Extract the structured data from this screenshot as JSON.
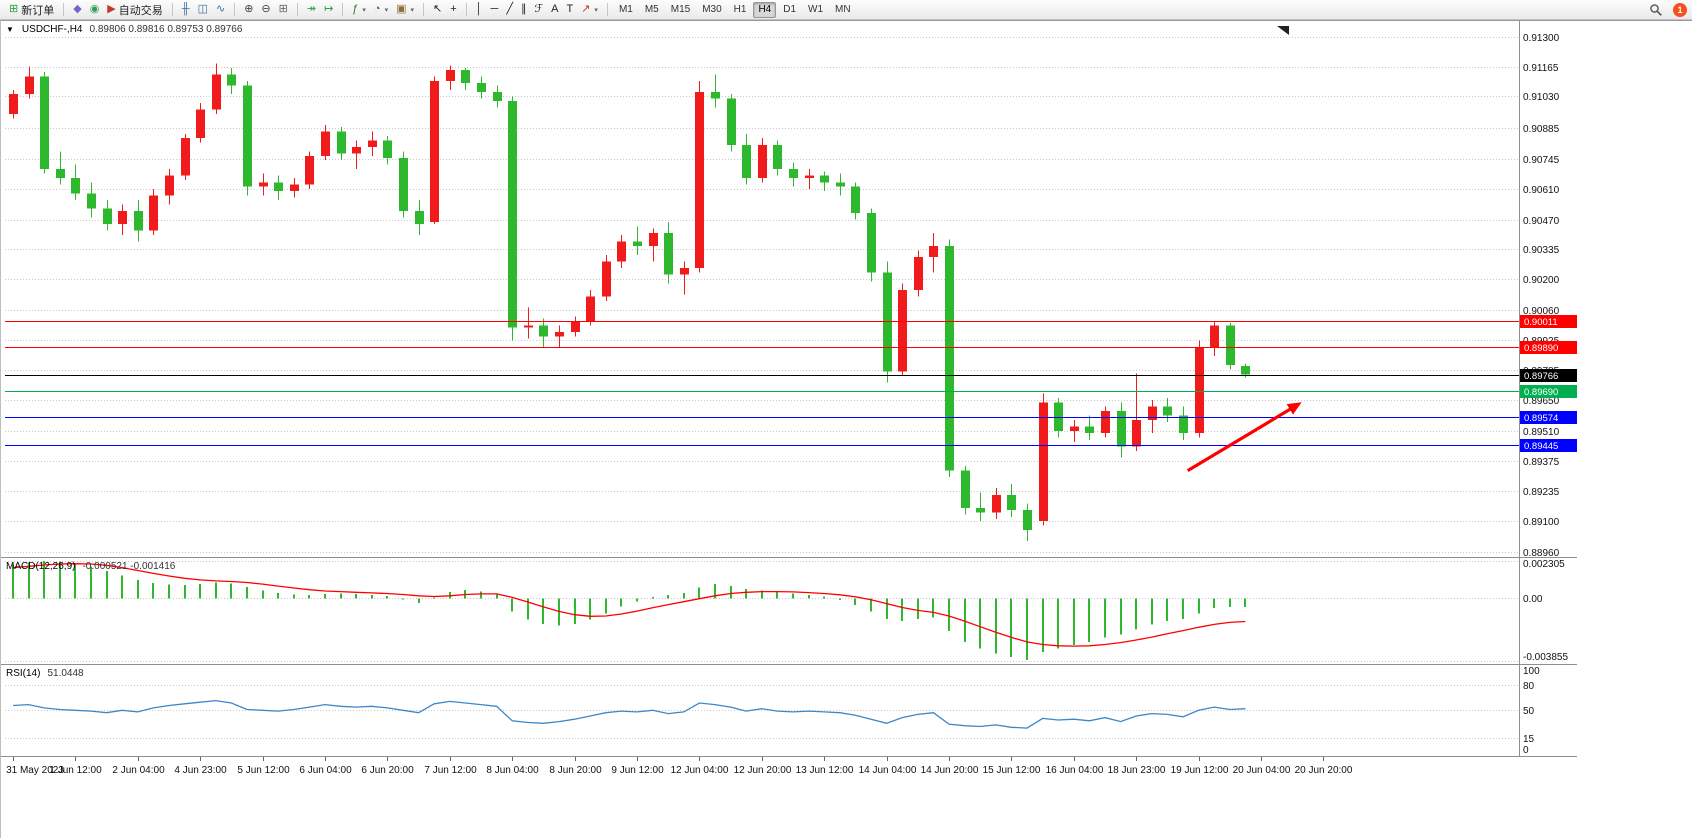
{
  "toolbar": {
    "groups": [
      {
        "name": "orders",
        "items": [
          {
            "name": "new-order-button",
            "glyph": "⊞",
            "glyph_color": "#2e9e44",
            "label": "新订单"
          }
        ]
      },
      {
        "name": "apps",
        "items": [
          {
            "name": "metaeditor-icon-button",
            "glyph": "◆",
            "glyph_color": "#7a63c8"
          },
          {
            "name": "market-watch-icon-button",
            "glyph": "◉",
            "glyph_color": "#2e9e5b"
          },
          {
            "name": "autotrading-button",
            "glyph": "▶",
            "glyph_color": "#c0392b",
            "label": "自动交易"
          }
        ]
      },
      {
        "name": "chart-types",
        "items": [
          {
            "name": "bar-chart-icon-button",
            "glyph": "╫",
            "glyph_color": "#3a6ea5"
          },
          {
            "name": "candlestick-chart-icon-button",
            "glyph": "◫",
            "glyph_color": "#3a6ea5"
          },
          {
            "name": "line-chart-icon-button",
            "glyph": "∿",
            "glyph_color": "#3a6ea5"
          }
        ]
      },
      {
        "name": "zoom",
        "items": [
          {
            "name": "zoom-in-icon-button",
            "glyph": "⊕",
            "glyph_color": "#444444"
          },
          {
            "name": "zoom-out-icon-button",
            "glyph": "⊖",
            "glyph_color": "#444444"
          },
          {
            "name": "tile-windows-icon-button",
            "glyph": "⊞",
            "glyph_color": "#666666"
          }
        ]
      },
      {
        "name": "scroll",
        "items": [
          {
            "name": "auto-scroll-icon-button",
            "glyph": "↠",
            "glyph_color": "#2e9e44"
          },
          {
            "name": "chart-shift-icon-button",
            "glyph": "↦",
            "glyph_color": "#2e9e44"
          }
        ]
      },
      {
        "name": "objects",
        "items": [
          {
            "name": "indicators-icon-button",
            "glyph": "ƒ",
            "glyph_color": "#2e7d32",
            "caret": true
          },
          {
            "name": "periods-icon-button",
            "glyph": "◔",
            "glyph_color": "#555555",
            "caret": true
          },
          {
            "name": "templates-icon-button",
            "glyph": "▣",
            "glyph_color": "#8a6d3b",
            "caret": true
          }
        ]
      },
      {
        "name": "cursor",
        "items": [
          {
            "name": "cursor-icon-button",
            "glyph": "↖",
            "glyph_color": "#222222"
          },
          {
            "name": "crosshair-icon-button",
            "glyph": "+",
            "glyph_color": "#222222"
          }
        ]
      },
      {
        "name": "drawing",
        "items": [
          {
            "name": "vertical-line-icon-button",
            "glyph": "│",
            "glyph_color": "#222222"
          },
          {
            "name": "horizontal-line-icon-button",
            "glyph": "─",
            "glyph_color": "#222222"
          },
          {
            "name": "trendline-icon-button",
            "glyph": "╱",
            "glyph_color": "#222222"
          },
          {
            "name": "channel-icon-button",
            "glyph": "∥",
            "glyph_color": "#222222"
          },
          {
            "name": "fibonacci-icon-button",
            "glyph": "ℱ",
            "glyph_color": "#222222"
          },
          {
            "name": "text-icon-button",
            "glyph": "A",
            "glyph_color": "#222222"
          },
          {
            "name": "text-label-icon-button",
            "glyph": "T",
            "glyph_color": "#222222"
          },
          {
            "name": "arrows-icon-button",
            "glyph": "↗",
            "glyph_color": "#c0392b",
            "caret": true
          }
        ]
      }
    ],
    "timeframes": [
      "M1",
      "M5",
      "M15",
      "M30",
      "H1",
      "H4",
      "D1",
      "W1",
      "MN"
    ],
    "active_timeframe": "H4",
    "notification_count": "1"
  },
  "chart": {
    "menu_icon_glyph": "▼",
    "symbol_period": "USDCHF-,H4",
    "ohlc_text": "0.89806 0.89816 0.89753 0.89766"
  },
  "chart_data": {
    "type": "candlestick",
    "title": "USDCHF-,H4",
    "symbol": "USDCHF-",
    "timeframe": "H4",
    "current_ohlc": {
      "open": "0.89806",
      "high": "0.89816",
      "low": "0.89753",
      "close": "0.89766"
    },
    "colors": {
      "bull": "#f21b1b",
      "bear": "#2eb82e",
      "grid": "#c9c9c9",
      "macd_hist": "#2eb82e",
      "macd_signal": "#ff0000",
      "rsi_line": "#3e86c6",
      "arrow": "#ff0000"
    },
    "price_axis": {
      "max": 0.913,
      "min": 0.8896,
      "ticks": [
        "0.91300",
        "0.91165",
        "0.91030",
        "0.90885",
        "0.90745",
        "0.90610",
        "0.90470",
        "0.90335",
        "0.90200",
        "0.90060",
        "0.89925",
        "0.89785",
        "0.89650",
        "0.89510",
        "0.89375",
        "0.89235",
        "0.89100",
        "0.88960"
      ]
    },
    "time_labels": [
      "31 May 2023",
      "1 Jun 12:00",
      "2 Jun 04:00",
      "4 Jun 23:00",
      "5 Jun 12:00",
      "6 Jun 04:00",
      "6 Jun 20:00",
      "7 Jun 12:00",
      "8 Jun 04:00",
      "8 Jun 20:00",
      "9 Jun 12:00",
      "12 Jun 04:00",
      "12 Jun 20:00",
      "13 Jun 12:00",
      "14 Jun 04:00",
      "14 Jun 20:00",
      "15 Jun 12:00",
      "16 Jun 04:00",
      "18 Jun 23:00",
      "19 Jun 12:00",
      "20 Jun 04:00",
      "20 Jun 20:00"
    ],
    "candles": [
      [
        0.9095,
        0.9106,
        0.9093,
        0.9104
      ],
      [
        0.9104,
        0.91165,
        0.9102,
        0.9112
      ],
      [
        0.9112,
        0.9114,
        0.9068,
        0.907
      ],
      [
        0.907,
        0.9078,
        0.9063,
        0.9066
      ],
      [
        0.9066,
        0.9072,
        0.9056,
        0.9059
      ],
      [
        0.9059,
        0.9064,
        0.9048,
        0.9052
      ],
      [
        0.9052,
        0.9056,
        0.9042,
        0.9045
      ],
      [
        0.9045,
        0.9054,
        0.904,
        0.9051
      ],
      [
        0.9051,
        0.9056,
        0.9037,
        0.9042
      ],
      [
        0.9042,
        0.9061,
        0.904,
        0.9058
      ],
      [
        0.9058,
        0.907,
        0.9054,
        0.9067
      ],
      [
        0.9067,
        0.9086,
        0.9065,
        0.9084
      ],
      [
        0.9084,
        0.91,
        0.9082,
        0.9097
      ],
      [
        0.9097,
        0.9118,
        0.9095,
        0.9113
      ],
      [
        0.9113,
        0.9116,
        0.9104,
        0.9108
      ],
      [
        0.9108,
        0.911,
        0.9058,
        0.9062
      ],
      [
        0.9062,
        0.9068,
        0.9058,
        0.9064
      ],
      [
        0.9064,
        0.9067,
        0.9056,
        0.906
      ],
      [
        0.906,
        0.9066,
        0.9057,
        0.9063
      ],
      [
        0.9063,
        0.9078,
        0.9061,
        0.9076
      ],
      [
        0.9076,
        0.909,
        0.9074,
        0.9087
      ],
      [
        0.9087,
        0.9089,
        0.9074,
        0.9077
      ],
      [
        0.9077,
        0.9083,
        0.907,
        0.908
      ],
      [
        0.908,
        0.9087,
        0.9076,
        0.9083
      ],
      [
        0.9083,
        0.9085,
        0.9072,
        0.9075
      ],
      [
        0.9075,
        0.9078,
        0.9048,
        0.9051
      ],
      [
        0.9051,
        0.9056,
        0.904,
        0.9045
      ],
      [
        0.9046,
        0.9112,
        0.9045,
        0.911
      ],
      [
        0.911,
        0.9117,
        0.9106,
        0.9115
      ],
      [
        0.9115,
        0.9116,
        0.9106,
        0.9109
      ],
      [
        0.9109,
        0.9112,
        0.9102,
        0.9105
      ],
      [
        0.9105,
        0.9108,
        0.9098,
        0.9101
      ],
      [
        0.9101,
        0.9103,
        0.8992,
        0.8998
      ],
      [
        0.8998,
        0.9007,
        0.8993,
        0.8999
      ],
      [
        0.8999,
        0.9002,
        0.8989,
        0.8994
      ],
      [
        0.8994,
        0.8999,
        0.8989,
        0.8996
      ],
      [
        0.8996,
        0.9003,
        0.8994,
        0.9001
      ],
      [
        0.9001,
        0.9015,
        0.8999,
        0.9012
      ],
      [
        0.9012,
        0.9031,
        0.901,
        0.9028
      ],
      [
        0.9028,
        0.904,
        0.9025,
        0.9037
      ],
      [
        0.9037,
        0.9044,
        0.9031,
        0.9035
      ],
      [
        0.9035,
        0.9043,
        0.9028,
        0.9041
      ],
      [
        0.9041,
        0.9046,
        0.9018,
        0.9022
      ],
      [
        0.9022,
        0.9028,
        0.9013,
        0.9025
      ],
      [
        0.9025,
        0.911,
        0.9023,
        0.9105
      ],
      [
        0.9105,
        0.9113,
        0.9098,
        0.9102
      ],
      [
        0.9102,
        0.9104,
        0.9078,
        0.9081
      ],
      [
        0.9081,
        0.9086,
        0.9063,
        0.9066
      ],
      [
        0.9066,
        0.9084,
        0.9064,
        0.9081
      ],
      [
        0.9081,
        0.9083,
        0.9067,
        0.907
      ],
      [
        0.907,
        0.9073,
        0.9062,
        0.9066
      ],
      [
        0.9066,
        0.907,
        0.9061,
        0.9067
      ],
      [
        0.9067,
        0.9069,
        0.906,
        0.9064
      ],
      [
        0.9064,
        0.9068,
        0.9058,
        0.9062
      ],
      [
        0.9062,
        0.9064,
        0.9047,
        0.905
      ],
      [
        0.905,
        0.9052,
        0.9019,
        0.9023
      ],
      [
        0.9023,
        0.9028,
        0.8973,
        0.8978
      ],
      [
        0.8978,
        0.9018,
        0.8976,
        0.9015
      ],
      [
        0.9015,
        0.9033,
        0.9012,
        0.903
      ],
      [
        0.903,
        0.9041,
        0.9023,
        0.9035
      ],
      [
        0.9035,
        0.9038,
        0.893,
        0.8933
      ],
      [
        0.8933,
        0.8935,
        0.8913,
        0.8916
      ],
      [
        0.8916,
        0.8923,
        0.891,
        0.8914
      ],
      [
        0.8914,
        0.8925,
        0.8911,
        0.8922
      ],
      [
        0.8922,
        0.8927,
        0.8912,
        0.8915
      ],
      [
        0.8915,
        0.8918,
        0.8901,
        0.8906
      ],
      [
        0.891,
        0.8968,
        0.8908,
        0.8964
      ],
      [
        0.8964,
        0.8966,
        0.8948,
        0.8951
      ],
      [
        0.8951,
        0.8956,
        0.8946,
        0.8953
      ],
      [
        0.8953,
        0.8958,
        0.8947,
        0.895
      ],
      [
        0.895,
        0.8962,
        0.8948,
        0.896
      ],
      [
        0.896,
        0.8964,
        0.8939,
        0.8944
      ],
      [
        0.8944,
        0.8977,
        0.8942,
        0.8956
      ],
      [
        0.8956,
        0.8965,
        0.895,
        0.8962
      ],
      [
        0.8962,
        0.8966,
        0.8955,
        0.8958
      ],
      [
        0.8958,
        0.8962,
        0.8947,
        0.895
      ],
      [
        0.895,
        0.8992,
        0.8948,
        0.8989
      ],
      [
        0.8989,
        0.9001,
        0.8985,
        0.8999
      ],
      [
        0.8999,
        0.9,
        0.8979,
        0.8981
      ],
      [
        0.89806,
        0.89816,
        0.89753,
        0.89766
      ]
    ],
    "levels": [
      {
        "price": 0.90011,
        "label": "0.90011",
        "color": "#ff0000",
        "kind": "resistance"
      },
      {
        "price": 0.8989,
        "label": "0.89890",
        "color": "#ff0000",
        "kind": "resistance"
      },
      {
        "price": 0.89766,
        "label": "0.89766",
        "color": "#000000",
        "kind": "current-bid"
      },
      {
        "price": 0.8969,
        "label": "0.89690",
        "color": "#00b050",
        "kind": "level"
      },
      {
        "price": 0.89574,
        "label": "0.89574",
        "color": "#0000ff",
        "kind": "support"
      },
      {
        "price": 0.89445,
        "label": "0.89445",
        "color": "#0000ff",
        "kind": "support"
      }
    ],
    "arrow": {
      "from_index": 75.3,
      "from_price": 0.8933,
      "to_index": 82.6,
      "to_price": 0.8964
    },
    "macd": {
      "name": "MACD(12,26,9)",
      "values_text": "-0.000521 -0.001416",
      "scale_max": 0.002305,
      "scale_min": -0.003855,
      "axis_ticks": [
        "0.002305",
        "0.00",
        "-0.003855"
      ],
      "histogram": [
        0.0021,
        0.00222,
        0.0023,
        0.00226,
        0.00215,
        0.00196,
        0.00168,
        0.0014,
        0.00115,
        0.00096,
        0.00085,
        0.00082,
        0.00088,
        0.00098,
        0.00092,
        0.0007,
        0.0005,
        0.00034,
        0.00024,
        0.00022,
        0.00028,
        0.0003,
        0.00026,
        0.00022,
        0.00014,
        -6e-05,
        -0.00028,
        6e-05,
        0.0004,
        0.00052,
        0.00044,
        0.0003,
        -0.0008,
        -0.0013,
        -0.00158,
        -0.00168,
        -0.00158,
        -0.0013,
        -0.00092,
        -0.0005,
        -0.00018,
        0.0001,
        0.00022,
        0.00032,
        0.00068,
        0.00088,
        0.00078,
        0.00058,
        0.00048,
        0.0004,
        0.0003,
        0.00022,
        0.00012,
        -0.0001,
        -0.0004,
        -0.00082,
        -0.00128,
        -0.0014,
        -0.00128,
        -0.00118,
        -0.002,
        -0.00268,
        -0.0031,
        -0.0034,
        -0.00362,
        -0.0038,
        -0.0033,
        -0.00308,
        -0.00288,
        -0.00268,
        -0.00242,
        -0.00222,
        -0.00192,
        -0.00162,
        -0.0014,
        -0.00128,
        -0.00092,
        -0.00058,
        -0.00054,
        -0.00052
      ],
      "signal": [
        0.0019,
        0.00198,
        0.00206,
        0.00212,
        0.00214,
        0.00212,
        0.00204,
        0.0019,
        0.00172,
        0.00154,
        0.00138,
        0.00124,
        0.00114,
        0.00108,
        0.00104,
        0.00098,
        0.00088,
        0.00076,
        0.00064,
        0.00054,
        0.00046,
        0.00042,
        0.00038,
        0.00034,
        0.0003,
        0.00024,
        0.00016,
        0.00012,
        0.00016,
        0.00024,
        0.00028,
        0.00028,
        6e-05,
        -0.00022,
        -0.00052,
        -0.0008,
        -0.001,
        -0.0011,
        -0.00108,
        -0.00096,
        -0.00078,
        -0.00058,
        -0.00038,
        -0.0002,
        -2e-05,
        0.00016,
        0.0003,
        0.00038,
        0.00042,
        0.00042,
        0.0004,
        0.00036,
        0.0003,
        0.00022,
        0.0001,
        -8e-05,
        -0.00032,
        -0.00056,
        -0.00074,
        -0.00086,
        -0.00108,
        -0.0014,
        -0.00174,
        -0.00208,
        -0.0024,
        -0.00268,
        -0.00284,
        -0.00292,
        -0.00294,
        -0.00292,
        -0.00284,
        -0.00272,
        -0.00256,
        -0.00238,
        -0.00218,
        -0.00198,
        -0.00178,
        -0.0016,
        -0.00148,
        -0.00142
      ]
    },
    "rsi": {
      "name": "RSI(14)",
      "value_text": "51.0448",
      "scale_max": 100,
      "scale_min": 0,
      "axis_ticks": [
        "100",
        "80",
        "50",
        "15",
        "0"
      ],
      "level_lines": [
        80,
        50,
        15
      ],
      "values": [
        55,
        56,
        52,
        50,
        49,
        48,
        46,
        49,
        47,
        52,
        55,
        57,
        59,
        61,
        58,
        50,
        49,
        48,
        50,
        53,
        56,
        54,
        53,
        54,
        52,
        49,
        46,
        57,
        60,
        58,
        56,
        54,
        36,
        34,
        33,
        35,
        38,
        42,
        46,
        48,
        47,
        49,
        45,
        47,
        58,
        56,
        53,
        48,
        51,
        48,
        47,
        48,
        47,
        46,
        43,
        38,
        33,
        40,
        44,
        46,
        32,
        30,
        29,
        31,
        28,
        27,
        39,
        37,
        38,
        36,
        40,
        35,
        42,
        45,
        44,
        41,
        49,
        53,
        50,
        51.0448
      ]
    }
  }
}
